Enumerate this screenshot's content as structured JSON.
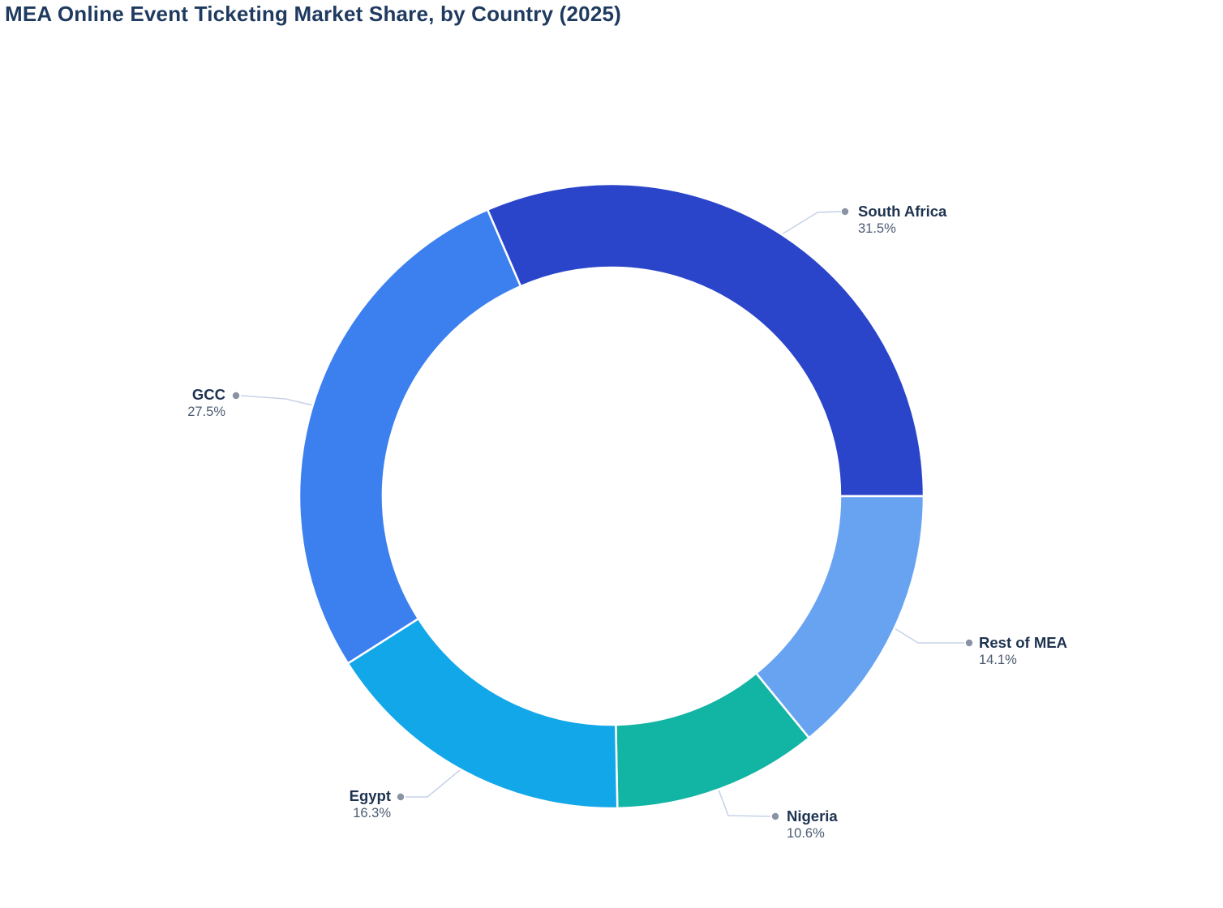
{
  "title": "MEA Online Event Ticketing Market Share, by Country (2025)",
  "colors": {
    "title_text": "#1f3a5f",
    "label_name_text": "#1e3350",
    "label_pct_text": "#4c5b72",
    "leader_line": "#c7d3e8",
    "leader_dot": "#8a93a4",
    "slice_divider": "#ffffff",
    "background": "#ffffff"
  },
  "chart_data": {
    "type": "pie",
    "subtype": "donut",
    "title": "MEA Online Event Ticketing Market Share, by Country (2025)",
    "unit": "%",
    "donut_hole_ratio": 0.732,
    "start_angle_deg": -23.4,
    "direction": "clockwise",
    "legend_position": "none",
    "labels_style": "outside-with-leader-lines",
    "slices": [
      {
        "label": "South Africa",
        "value": 31.5,
        "display": "31.5%",
        "color": "#2a45ca"
      },
      {
        "label": "Rest of MEA",
        "value": 14.1,
        "display": "14.1%",
        "color": "#68a3f2"
      },
      {
        "label": "Nigeria",
        "value": 10.6,
        "display": "10.6%",
        "color": "#12b4a4"
      },
      {
        "label": "Egypt",
        "value": 16.3,
        "display": "16.3%",
        "color": "#12a7e8"
      },
      {
        "label": "GCC",
        "value": 27.5,
        "display": "27.5%",
        "color": "#3c80f0"
      }
    ]
  }
}
